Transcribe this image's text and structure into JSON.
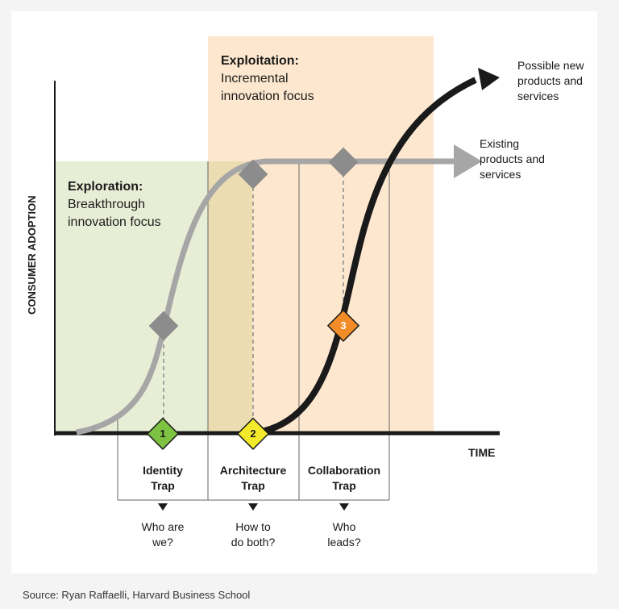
{
  "colors": {
    "exploration_region": "#e8eed6",
    "exploitation_region": "#fde8cf",
    "existing_curve": "#a6a6a6",
    "new_curve": "#1a1a1a",
    "trap1": "#7dc242",
    "trap2": "#f3ea2b",
    "trap3": "#f28c28",
    "marker_gray": "#8c8c8c"
  },
  "axes": {
    "y_label": "CONSUMER ADOPTION",
    "x_label": "TIME"
  },
  "regions": {
    "exploration": {
      "title": "Exploration:",
      "line1": "Breakthrough",
      "line2": "innovation focus"
    },
    "exploitation": {
      "title": "Exploitation:",
      "line1": "Incremental",
      "line2": "innovation focus"
    }
  },
  "curves": {
    "existing": {
      "line1": "Existing",
      "line2": "products and",
      "line3": "services"
    },
    "new": {
      "line1": "Possible new",
      "line2": "products and",
      "line3": "services"
    }
  },
  "traps": [
    {
      "number": "1",
      "name_line1": "Identity",
      "name_line2": "Trap",
      "q_line1": "Who are",
      "q_line2": "we?"
    },
    {
      "number": "2",
      "name_line1": "Architecture",
      "name_line2": "Trap",
      "q_line1": "How to",
      "q_line2": "do both?"
    },
    {
      "number": "3",
      "name_line1": "Collaboration",
      "name_line2": "Trap",
      "q_line1": "Who",
      "q_line2": "leads?"
    }
  ],
  "source": "Source: Ryan Raffaelli, Harvard Business School"
}
